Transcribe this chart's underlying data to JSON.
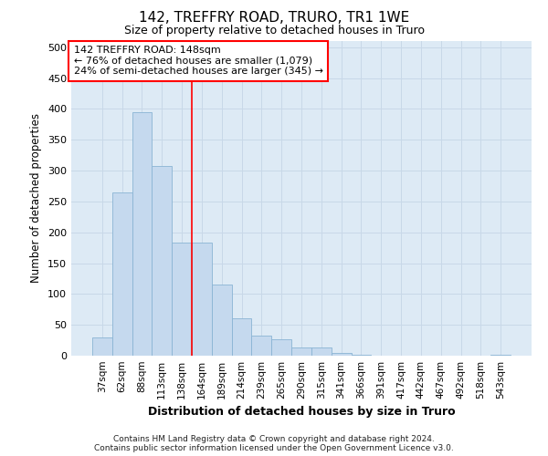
{
  "title": "142, TREFFRY ROAD, TRURO, TR1 1WE",
  "subtitle": "Size of property relative to detached houses in Truro",
  "xlabel": "Distribution of detached houses by size in Truro",
  "ylabel": "Number of detached properties",
  "footer_line1": "Contains HM Land Registry data © Crown copyright and database right 2024.",
  "footer_line2": "Contains public sector information licensed under the Open Government Licence v3.0.",
  "bar_labels": [
    "37sqm",
    "62sqm",
    "88sqm",
    "113sqm",
    "138sqm",
    "164sqm",
    "189sqm",
    "214sqm",
    "239sqm",
    "265sqm",
    "290sqm",
    "315sqm",
    "341sqm",
    "366sqm",
    "391sqm",
    "417sqm",
    "442sqm",
    "467sqm",
    "492sqm",
    "518sqm",
    "543sqm"
  ],
  "bar_values": [
    30,
    265,
    395,
    308,
    183,
    183,
    115,
    60,
    32,
    27,
    13,
    14,
    5,
    1,
    0,
    0,
    0,
    0,
    0,
    0,
    2
  ],
  "bar_color": "#c5d9ee",
  "bar_edge_color": "#8ab4d4",
  "grid_color": "#c8d8e8",
  "background_color": "#ddeaf5",
  "red_line_x": 4.5,
  "annotation_line1": "142 TREFFRY ROAD: 148sqm",
  "annotation_line2": "← 76% of detached houses are smaller (1,079)",
  "annotation_line3": "24% of semi-detached houses are larger (345) →",
  "ylim": [
    0,
    510
  ],
  "yticks": [
    0,
    50,
    100,
    150,
    200,
    250,
    300,
    350,
    400,
    450,
    500
  ]
}
